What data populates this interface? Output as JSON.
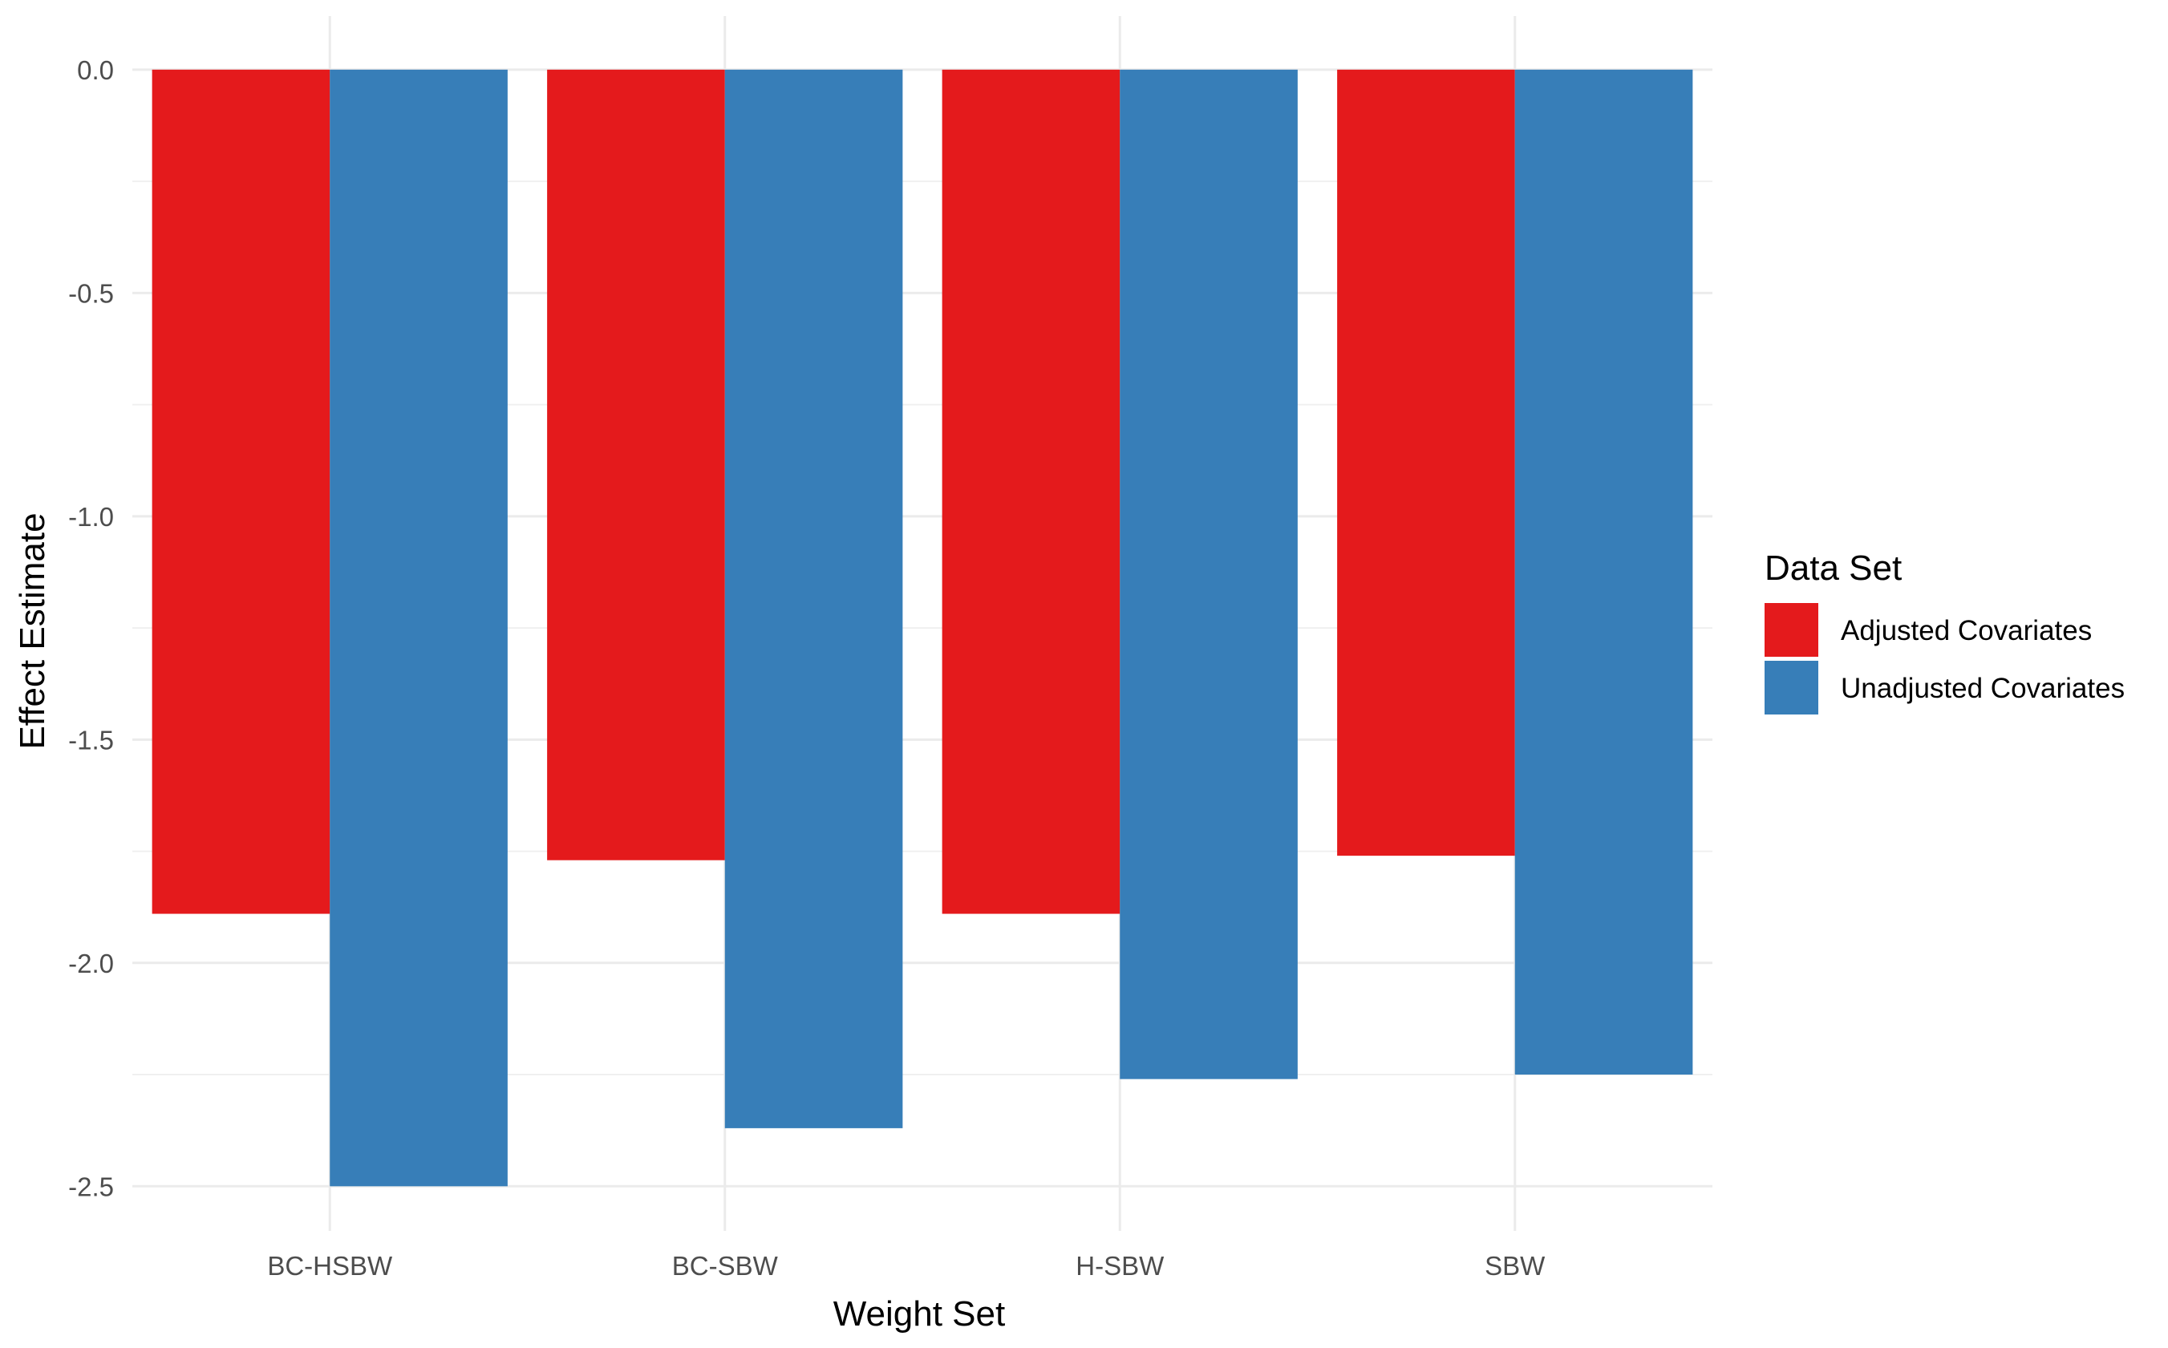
{
  "chart_data": {
    "type": "bar",
    "xlabel": "Weight Set",
    "ylabel": "Effect Estimate",
    "categories": [
      "BC-HSBW",
      "BC-SBW",
      "H-SBW",
      "SBW"
    ],
    "series": [
      {
        "name": "Adjusted Covariates",
        "color": "#E41A1C",
        "values": [
          -1.89,
          -1.77,
          -1.89,
          -1.76
        ]
      },
      {
        "name": "Unadjusted Covariates",
        "color": "#377EB8",
        "values": [
          -2.5,
          -2.37,
          -2.26,
          -2.25
        ]
      }
    ],
    "ylim": [
      -2.6,
      0.12
    ],
    "yticks": [
      "0.0",
      "-0.5",
      "-1.0",
      "-1.5",
      "-2.0",
      "-2.5"
    ],
    "ytick_values": [
      0.0,
      -0.5,
      -1.0,
      -1.5,
      -2.0,
      -2.5
    ],
    "grid": true,
    "legend": {
      "title": "Data Set",
      "position": "right"
    }
  }
}
